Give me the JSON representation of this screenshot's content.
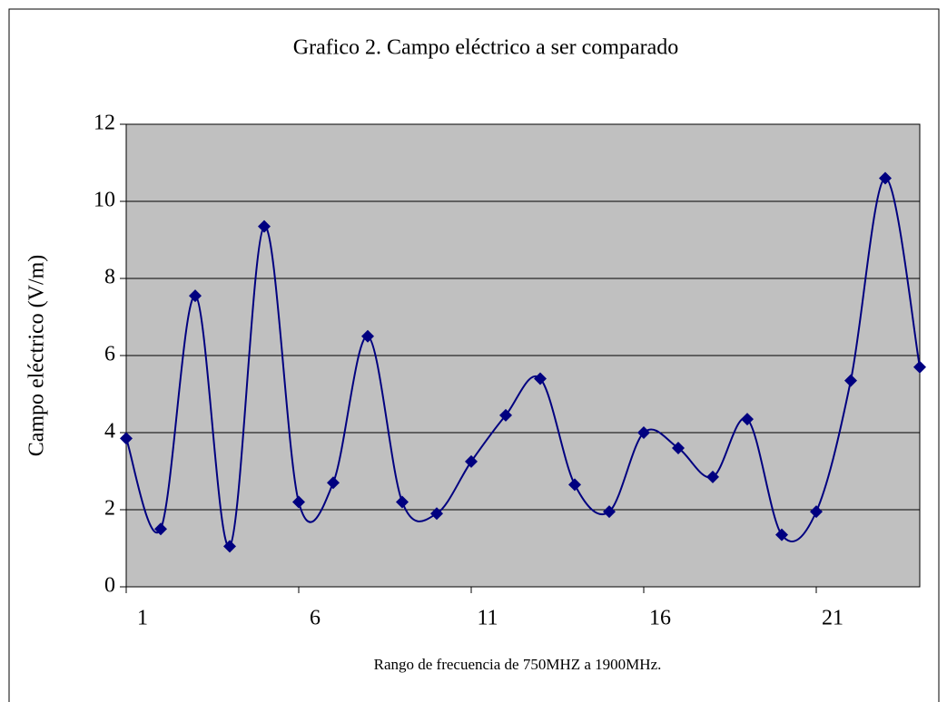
{
  "chart_data": {
    "type": "line",
    "title": "Grafico 2. Campo eléctrico a ser comparado",
    "x_label": "Rango de frecuencia de 750MHZ a 1900MHz.",
    "y_label": "Campo eléctrico (V/m)",
    "x": [
      1,
      2,
      3,
      4,
      5,
      6,
      7,
      8,
      9,
      10,
      11,
      12,
      13,
      14,
      15,
      16,
      17,
      18,
      19,
      20,
      21,
      22,
      23,
      24
    ],
    "series": [
      {
        "name": "Campo eléctrico",
        "color": "#000080",
        "values": [
          3.85,
          1.5,
          7.55,
          1.05,
          9.35,
          2.2,
          2.7,
          6.5,
          2.2,
          1.9,
          3.25,
          4.45,
          5.4,
          2.65,
          1.95,
          4.0,
          3.6,
          2.85,
          4.35,
          1.35,
          1.95,
          5.35,
          10.6,
          5.7
        ]
      }
    ],
    "xlim": [
      1,
      24
    ],
    "xticks": [
      1,
      6,
      11,
      16,
      21
    ],
    "ylim": [
      0,
      12
    ],
    "yticks": [
      0,
      2,
      4,
      6,
      8,
      10,
      12
    ],
    "grid": true,
    "smooth": true,
    "plot_background": "#c0c0c0"
  }
}
